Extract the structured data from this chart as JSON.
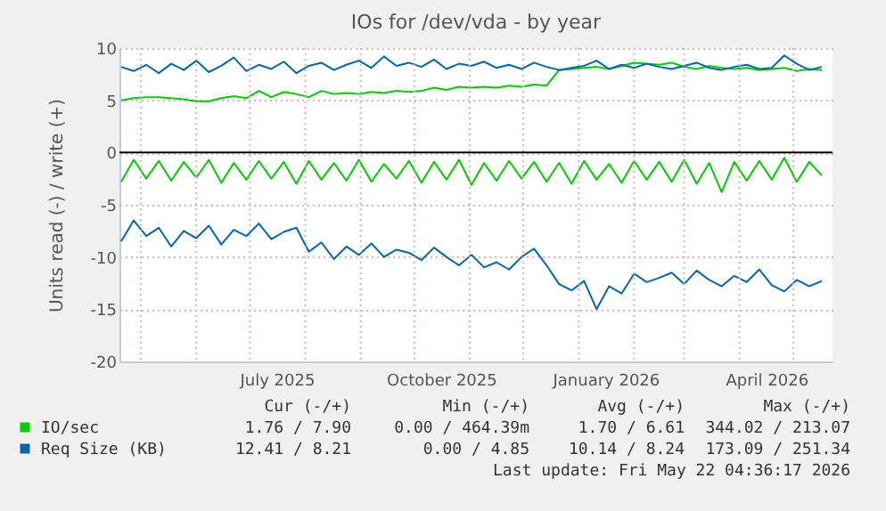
{
  "chart_data": {
    "type": "line",
    "title": "IOs for /dev/vda - by year",
    "ylabel": "Units read (-) / write (+)",
    "x": [
      "2025-04-20",
      "2025-04-27",
      "2025-05-04",
      "2025-05-11",
      "2025-05-18",
      "2025-05-25",
      "2025-06-01",
      "2025-06-08",
      "2025-06-15",
      "2025-06-22",
      "2025-06-29",
      "2025-07-06",
      "2025-07-13",
      "2025-07-20",
      "2025-07-27",
      "2025-08-03",
      "2025-08-10",
      "2025-08-17",
      "2025-08-24",
      "2025-08-31",
      "2025-09-07",
      "2025-09-14",
      "2025-09-21",
      "2025-09-28",
      "2025-10-05",
      "2025-10-12",
      "2025-10-19",
      "2025-10-26",
      "2025-11-02",
      "2025-11-09",
      "2025-11-16",
      "2025-11-23",
      "2025-11-30",
      "2025-12-07",
      "2025-12-14",
      "2025-12-21",
      "2025-12-28",
      "2026-01-04",
      "2026-01-11",
      "2026-01-18",
      "2026-01-25",
      "2026-02-01",
      "2026-02-08",
      "2026-02-15",
      "2026-02-22",
      "2026-03-01",
      "2026-03-08",
      "2026-03-15",
      "2026-03-22",
      "2026-03-29",
      "2026-04-05",
      "2026-04-12",
      "2026-04-19",
      "2026-04-26",
      "2026-05-03",
      "2026-05-10",
      "2026-05-17"
    ],
    "series": [
      {
        "name": "IO/sec",
        "color": "#00cc00",
        "values": [
          5.0,
          5.2,
          5.3,
          5.3,
          5.2,
          5.1,
          4.9,
          4.9,
          5.2,
          5.4,
          5.2,
          5.9,
          5.3,
          5.8,
          5.6,
          5.3,
          5.9,
          5.6,
          5.7,
          5.6,
          5.8,
          5.7,
          5.9,
          5.8,
          5.9,
          6.2,
          6.0,
          6.3,
          6.2,
          6.3,
          6.2,
          6.4,
          6.3,
          6.5,
          6.4,
          7.9,
          8.0,
          8.1,
          8.2,
          8.0,
          8.3,
          8.6,
          8.5,
          8.4,
          8.6,
          8.2,
          8.0,
          8.3,
          8.1,
          8.0,
          8.1,
          7.9,
          8.0,
          8.1,
          7.8,
          8.0,
          7.9
        ]
      },
      {
        "color": "#00cc00",
        "values": [
          -2.8,
          -0.7,
          -2.5,
          -0.8,
          -2.7,
          -0.9,
          -2.4,
          -0.7,
          -2.9,
          -1.0,
          -2.6,
          -0.8,
          -2.5,
          -0.9,
          -3.0,
          -0.8,
          -2.6,
          -1.0,
          -2.7,
          -0.7,
          -2.8,
          -1.1,
          -2.5,
          -0.8,
          -2.9,
          -0.9,
          -2.6,
          -0.7,
          -3.1,
          -1.0,
          -2.7,
          -0.8,
          -2.5,
          -0.9,
          -2.8,
          -1.0,
          -3.0,
          -0.8,
          -2.6,
          -1.1,
          -2.9,
          -0.8,
          -2.6,
          -0.9,
          -2.8,
          -0.7,
          -3.0,
          -1.0,
          -3.8,
          -0.9,
          -2.7,
          -0.8,
          -2.6,
          -0.5,
          -2.8,
          -0.9,
          -2.2
        ]
      },
      {
        "name": "Req Size (KB)",
        "color": "#0066b3",
        "values": [
          8.2,
          7.8,
          8.4,
          7.6,
          8.5,
          7.9,
          8.8,
          7.7,
          8.3,
          9.1,
          7.8,
          8.4,
          8.0,
          8.7,
          7.6,
          8.3,
          8.6,
          7.9,
          8.4,
          8.8,
          8.1,
          9.2,
          8.3,
          8.6,
          8.2,
          8.9,
          8.0,
          8.5,
          8.3,
          8.7,
          8.1,
          8.4,
          8.0,
          8.6,
          8.2,
          7.9,
          8.1,
          8.3,
          8.8,
          8.0,
          8.4,
          8.1,
          8.5,
          8.2,
          8.0,
          8.3,
          8.6,
          8.1,
          7.9,
          8.2,
          8.4,
          8.0,
          8.1,
          9.3,
          8.5,
          7.9,
          8.2
        ]
      },
      {
        "color": "#0066b3",
        "values": [
          -8.5,
          -6.5,
          -8.0,
          -7.2,
          -9.0,
          -7.5,
          -8.2,
          -7.0,
          -8.8,
          -7.4,
          -8.0,
          -6.8,
          -8.3,
          -7.6,
          -7.2,
          -9.5,
          -8.6,
          -10.2,
          -9.0,
          -9.8,
          -8.7,
          -10.0,
          -9.3,
          -9.6,
          -10.3,
          -9.1,
          -10.0,
          -10.8,
          -9.8,
          -11.0,
          -10.5,
          -11.2,
          -10.0,
          -9.2,
          -10.8,
          -12.6,
          -13.2,
          -12.3,
          -15.0,
          -12.8,
          -13.5,
          -11.6,
          -12.4,
          -12.0,
          -11.5,
          -12.6,
          -11.3,
          -12.2,
          -12.8,
          -11.8,
          -12.4,
          -11.2,
          -12.7,
          -13.3,
          -12.2,
          -12.8,
          -12.3
        ]
      }
    ],
    "xlim": [
      "2025-04-19",
      "2026-05-23"
    ],
    "xticks": [
      {
        "value": "2025-05-01",
        "label": null
      },
      {
        "value": "2025-06-01",
        "label": null
      },
      {
        "value": "2025-07-01",
        "label": null
      },
      {
        "value": "2025-07-16",
        "label": "July 2025"
      },
      {
        "value": "2025-08-01",
        "label": null
      },
      {
        "value": "2025-09-01",
        "label": null
      },
      {
        "value": "2025-10-01",
        "label": null
      },
      {
        "value": "2025-10-16",
        "label": "October 2025"
      },
      {
        "value": "2025-11-01",
        "label": null
      },
      {
        "value": "2025-12-01",
        "label": null
      },
      {
        "value": "2026-01-01",
        "label": null
      },
      {
        "value": "2026-01-16",
        "label": "January 2026"
      },
      {
        "value": "2026-02-01",
        "label": null
      },
      {
        "value": "2026-03-01",
        "label": null
      },
      {
        "value": "2026-04-01",
        "label": null
      },
      {
        "value": "2026-04-16",
        "label": "April 2026"
      },
      {
        "value": "2026-05-01",
        "label": null
      }
    ],
    "ylim": [
      -20,
      10
    ],
    "yticks": [
      -20,
      -15,
      -10,
      -5,
      0,
      5,
      10
    ],
    "ref_lines": [
      {
        "axis": "y",
        "value": 0,
        "color": "#000000"
      }
    ],
    "grid": true,
    "legend": "bottom",
    "marker": "none",
    "line_style": "solid",
    "annotations": [
      "Cur (-/+)",
      "Min (-/+)",
      "Avg (-/+)",
      "Max (-/+)",
      "1.76 / 7.90",
      "0.00 / 464.39m",
      "1.70 / 6.61",
      "344.02 / 213.07",
      "12.41 / 8.21",
      "0.00 / 4.85",
      "10.14 / 8.24",
      "173.09 / 251.34",
      "Last update: Fri May 22 04:36:17 2026"
    ]
  }
}
